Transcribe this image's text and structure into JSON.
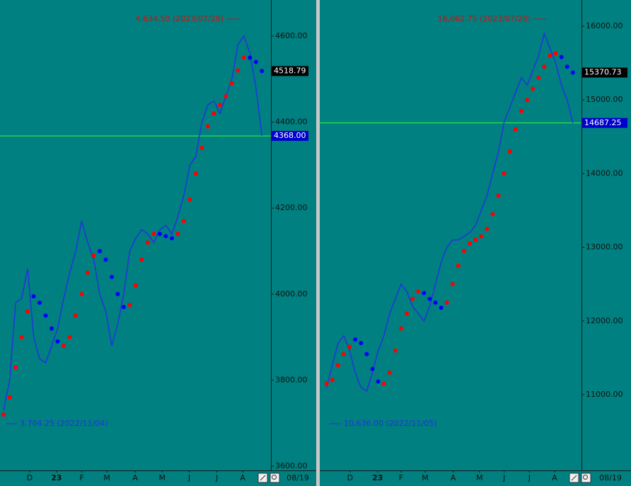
{
  "chart_data": [
    {
      "type": "line",
      "x": [
        0,
        1,
        2,
        3,
        4,
        5,
        6,
        7,
        8,
        9,
        10,
        11,
        12,
        13,
        14,
        15,
        16,
        17,
        18,
        19,
        20,
        21,
        22,
        23,
        24,
        25,
        26,
        27,
        28,
        29,
        30,
        31,
        32,
        33,
        34,
        35,
        36,
        37,
        38,
        39,
        40,
        41,
        42,
        43
      ],
      "xlim": [
        -0.6,
        44.5
      ],
      "xticks": [
        {
          "value": 4.35,
          "label": "D"
        },
        {
          "value": 8.8,
          "label": "23"
        },
        {
          "value": 13,
          "label": "F"
        },
        {
          "value": 17.2,
          "label": "M"
        },
        {
          "value": 21.9,
          "label": "A"
        },
        {
          "value": 26.4,
          "label": "M"
        },
        {
          "value": 30.9,
          "label": "J"
        },
        {
          "value": 35.5,
          "label": "J"
        },
        {
          "value": 39.8,
          "label": "A"
        }
      ],
      "date_label": "08/19",
      "ylim": [
        3590,
        4684
      ],
      "yticks": [
        {
          "value": 3600,
          "label": "3600.00"
        },
        {
          "value": 3800,
          "label": "3800.00"
        },
        {
          "value": 4000,
          "label": "4000.00"
        },
        {
          "value": 4200,
          "label": "4200.00"
        },
        {
          "value": 4400,
          "label": "4400.00"
        },
        {
          "value": 4600,
          "label": "4600.00"
        }
      ],
      "series": [
        {
          "color": "#2233dd",
          "values": [
            3730,
            3800,
            3980,
            3990,
            4060,
            3900,
            3850,
            3840,
            3880,
            3920,
            3990,
            4050,
            4100,
            4170,
            4120,
            4080,
            4000,
            3960,
            3880,
            3930,
            4000,
            4100,
            4130,
            4150,
            4140,
            4120,
            4150,
            4160,
            4140,
            4180,
            4230,
            4300,
            4320,
            4400,
            4440,
            4450,
            4420,
            4460,
            4500,
            4580,
            4600,
            4560,
            4480,
            4368
          ]
        }
      ],
      "sar": [
        3720,
        3760,
        3830,
        3900,
        3960,
        3995,
        3980,
        3950,
        3920,
        3890,
        3880,
        3900,
        3950,
        4000,
        4050,
        4090,
        4100,
        4080,
        4040,
        4000,
        3970,
        3975,
        4020,
        4080,
        4120,
        4140,
        4140,
        4135,
        4130,
        4140,
        4170,
        4220,
        4280,
        4340,
        4390,
        4420,
        4440,
        4460,
        4490,
        4520,
        4550,
        4550,
        4540,
        4518.79
      ],
      "sar_colors": [
        "#ff0000",
        "#ff0000",
        "#ff0000",
        "#ff0000",
        "#ff0000",
        "#0000ff",
        "#0000ff",
        "#0000ff",
        "#0000ff",
        "#0000ff",
        "#ff0000",
        "#ff0000",
        "#ff0000",
        "#ff0000",
        "#ff0000",
        "#ff0000",
        "#0000ff",
        "#0000ff",
        "#0000ff",
        "#0000ff",
        "#0000ff",
        "#ff0000",
        "#ff0000",
        "#ff0000",
        "#ff0000",
        "#ff0000",
        "#0000ff",
        "#0000ff",
        "#0000ff",
        "#ff0000",
        "#ff0000",
        "#ff0000",
        "#ff0000",
        "#ff0000",
        "#ff0000",
        "#ff0000",
        "#ff0000",
        "#ff0000",
        "#ff0000",
        "#ff0000",
        "#ff0000",
        "#0000ff",
        "#0000ff",
        "#0000ff"
      ],
      "high_label": "4,634.50  (2023/07/28)",
      "low_label": "3,704.25  (2022/11/04)",
      "last_labels": [
        {
          "value": 4518.79,
          "label": "4518.79",
          "color": "#000000"
        },
        {
          "value": 4368,
          "label": "4368.00",
          "color": "#0000cc"
        }
      ],
      "price_line": {
        "value": 4368,
        "color": "#33ff33"
      }
    },
    {
      "type": "line",
      "x": [
        0,
        1,
        2,
        3,
        4,
        5,
        6,
        7,
        8,
        9,
        10,
        11,
        12,
        13,
        14,
        15,
        16,
        17,
        18,
        19,
        20,
        21,
        22,
        23,
        24,
        25,
        26,
        27,
        28,
        29,
        30,
        31,
        32,
        33,
        34,
        35,
        36,
        37,
        38,
        39,
        40,
        41,
        42,
        43
      ],
      "xlim": [
        -1.2,
        44.5
      ],
      "xticks": [
        {
          "value": 4.1,
          "label": "D"
        },
        {
          "value": 8.9,
          "label": "23"
        },
        {
          "value": 13,
          "label": "F"
        },
        {
          "value": 17.2,
          "label": "M"
        },
        {
          "value": 22.1,
          "label": "A"
        },
        {
          "value": 26.7,
          "label": "M"
        },
        {
          "value": 31,
          "label": "J"
        },
        {
          "value": 35.4,
          "label": "J"
        },
        {
          "value": 39.8,
          "label": "A"
        }
      ],
      "date_label": "08/19",
      "ylim": [
        9973,
        16355
      ],
      "yticks": [
        {
          "value": 11000,
          "label": "11000.00"
        },
        {
          "value": 12000,
          "label": "12000.00"
        },
        {
          "value": 13000,
          "label": "13000.00"
        },
        {
          "value": 14000,
          "label": "14000.00"
        },
        {
          "value": 15000,
          "label": "15000.00"
        },
        {
          "value": 16000,
          "label": "16000.00"
        }
      ],
      "series": [
        {
          "color": "#2233dd",
          "values": [
            11100,
            11400,
            11700,
            11800,
            11600,
            11300,
            11100,
            11050,
            11300,
            11600,
            11800,
            12100,
            12300,
            12500,
            12400,
            12200,
            12100,
            12000,
            12200,
            12500,
            12800,
            13000,
            13100,
            13100,
            13150,
            13200,
            13300,
            13500,
            13700,
            14000,
            14300,
            14700,
            14900,
            15100,
            15300,
            15200,
            15400,
            15600,
            15900,
            15700,
            15500,
            15200,
            15000,
            14687.25
          ]
        }
      ],
      "sar": [
        11150,
        11200,
        11400,
        11550,
        11650,
        11750,
        11700,
        11550,
        11350,
        11180,
        11150,
        11300,
        11600,
        11900,
        12100,
        12300,
        12400,
        12380,
        12300,
        12250,
        12180,
        12250,
        12500,
        12750,
        12950,
        13050,
        13100,
        13150,
        13250,
        13450,
        13700,
        14000,
        14300,
        14600,
        14850,
        15000,
        15150,
        15300,
        15450,
        15600,
        15630,
        15580,
        15450,
        15370.73
      ],
      "sar_colors": [
        "#ff0000",
        "#ff0000",
        "#ff0000",
        "#ff0000",
        "#ff0000",
        "#0000ff",
        "#0000ff",
        "#0000ff",
        "#0000ff",
        "#0000ff",
        "#ff0000",
        "#ff0000",
        "#ff0000",
        "#ff0000",
        "#ff0000",
        "#ff0000",
        "#ff0000",
        "#0000ff",
        "#0000ff",
        "#0000ff",
        "#0000ff",
        "#ff0000",
        "#ff0000",
        "#ff0000",
        "#ff0000",
        "#ff0000",
        "#ff0000",
        "#ff0000",
        "#ff0000",
        "#ff0000",
        "#ff0000",
        "#ff0000",
        "#ff0000",
        "#ff0000",
        "#ff0000",
        "#ff0000",
        "#ff0000",
        "#ff0000",
        "#ff0000",
        "#ff0000",
        "#ff0000",
        "#0000ff",
        "#0000ff",
        "#0000ff"
      ],
      "high_label": "16,062.75  (2023/07/20)",
      "low_label": "10,636.00  (2022/11/05)",
      "last_labels": [
        {
          "value": 15370.73,
          "label": "15370.73",
          "color": "#000000"
        },
        {
          "value": 14687.25,
          "label": "14687.25",
          "color": "#0000cc"
        }
      ],
      "price_line": {
        "value": 14687.25,
        "color": "#33ff33"
      }
    }
  ]
}
